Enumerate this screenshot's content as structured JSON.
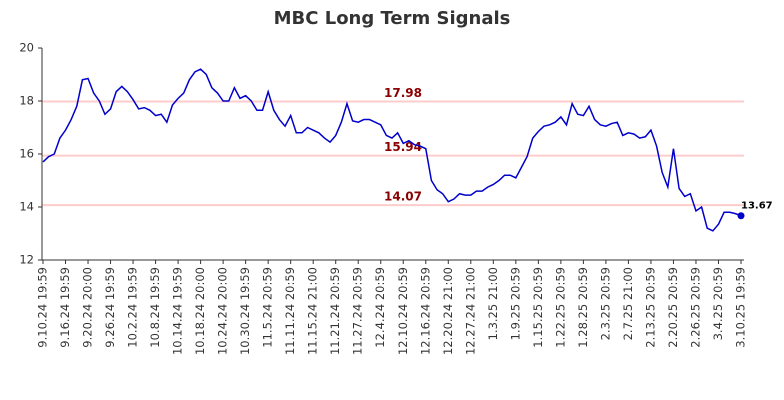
{
  "chart_data": {
    "type": "line",
    "title": "MBC Long Term Signals",
    "categories": [
      "9.10.24 19:59",
      null,
      null,
      null,
      "9.16.24 19:59",
      null,
      null,
      null,
      "9.20.24 20:00",
      null,
      null,
      null,
      "9.26.24 19:59",
      null,
      null,
      null,
      "10.2.24 19:59",
      null,
      null,
      null,
      "10.8.24 19:59",
      null,
      null,
      null,
      "10.14.24 19:59",
      null,
      null,
      null,
      "10.18.24 20:00",
      null,
      null,
      null,
      "10.24.24 20:00",
      null,
      null,
      null,
      "10.30.24 19:59",
      null,
      null,
      null,
      "11.5.24 20:59",
      null,
      null,
      null,
      "11.11.24 20:59",
      null,
      null,
      null,
      "11.15.24 21:00",
      null,
      null,
      null,
      "11.21.24 20:59",
      null,
      null,
      null,
      "11.27.24 20:59",
      null,
      null,
      null,
      "12.4.24 20:59",
      null,
      null,
      null,
      "12.10.24 20:59",
      null,
      null,
      null,
      "12.16.24 20:59",
      null,
      null,
      null,
      "12.20.24 21:00",
      null,
      null,
      null,
      "12.27.24 21:00",
      null,
      null,
      null,
      "1.3.25 21:00",
      null,
      null,
      null,
      "1.9.25 20:59",
      null,
      null,
      null,
      "1.15.25 20:59",
      null,
      null,
      null,
      "1.22.25 20:59",
      null,
      null,
      null,
      "1.28.25 20:59",
      null,
      null,
      null,
      "2.3.25 20:59",
      null,
      null,
      null,
      "2.7.25 21:00",
      null,
      null,
      null,
      "2.13.25 20:59",
      null,
      null,
      null,
      "2.20.25 20:59",
      null,
      null,
      null,
      "2.26.25 20:59",
      null,
      null,
      null,
      "3.4.25 20:59",
      null,
      null,
      null,
      "3.10.25 19:59"
    ],
    "series": [
      {
        "color": "#0000cc",
        "values": [
          15.7,
          15.9,
          16.0,
          16.6,
          16.9,
          17.3,
          17.8,
          18.8,
          18.85,
          18.3,
          18.0,
          17.5,
          17.7,
          18.35,
          18.55,
          18.35,
          18.05,
          17.7,
          17.75,
          17.65,
          17.45,
          17.5,
          17.2,
          17.85,
          18.1,
          18.3,
          18.8,
          19.1,
          19.2,
          19.0,
          18.5,
          18.3,
          18.0,
          18.0,
          18.5,
          18.1,
          18.2,
          18.0,
          17.65,
          17.65,
          18.35,
          17.65,
          17.3,
          17.05,
          17.45,
          16.8,
          16.8,
          17.0,
          16.9,
          16.8,
          16.6,
          16.45,
          16.7,
          17.2,
          17.9,
          17.25,
          17.2,
          17.3,
          17.3,
          17.2,
          17.1,
          16.7,
          16.6,
          16.8,
          16.4,
          16.5,
          16.35,
          16.3,
          16.2,
          15.0,
          14.65,
          14.5,
          14.2,
          14.3,
          14.5,
          14.45,
          14.45,
          14.6,
          14.6,
          14.75,
          14.85,
          15.0,
          15.2,
          15.2,
          15.1,
          15.5,
          15.9,
          16.6,
          16.85,
          17.05,
          17.1,
          17.2,
          17.4,
          17.1,
          17.9,
          17.5,
          17.45,
          17.8,
          17.3,
          17.1,
          17.05,
          17.15,
          17.2,
          16.7,
          16.8,
          16.75,
          16.6,
          16.65,
          16.9,
          16.3,
          15.3,
          14.75,
          16.2,
          14.7,
          14.4,
          14.5,
          13.85,
          14.0,
          13.2,
          13.1,
          13.35,
          13.8,
          13.8,
          13.75,
          13.67
        ]
      }
    ],
    "hlines": [
      {
        "value": 17.98,
        "color": "#ffcccc"
      },
      {
        "value": 15.94,
        "color": "#ffcccc"
      },
      {
        "value": 14.07,
        "color": "#ffcccc"
      }
    ],
    "hline_label_color": "#8b0000",
    "ylim": [
      12,
      20
    ],
    "yticks": [
      12,
      14,
      16,
      18,
      20
    ]
  }
}
